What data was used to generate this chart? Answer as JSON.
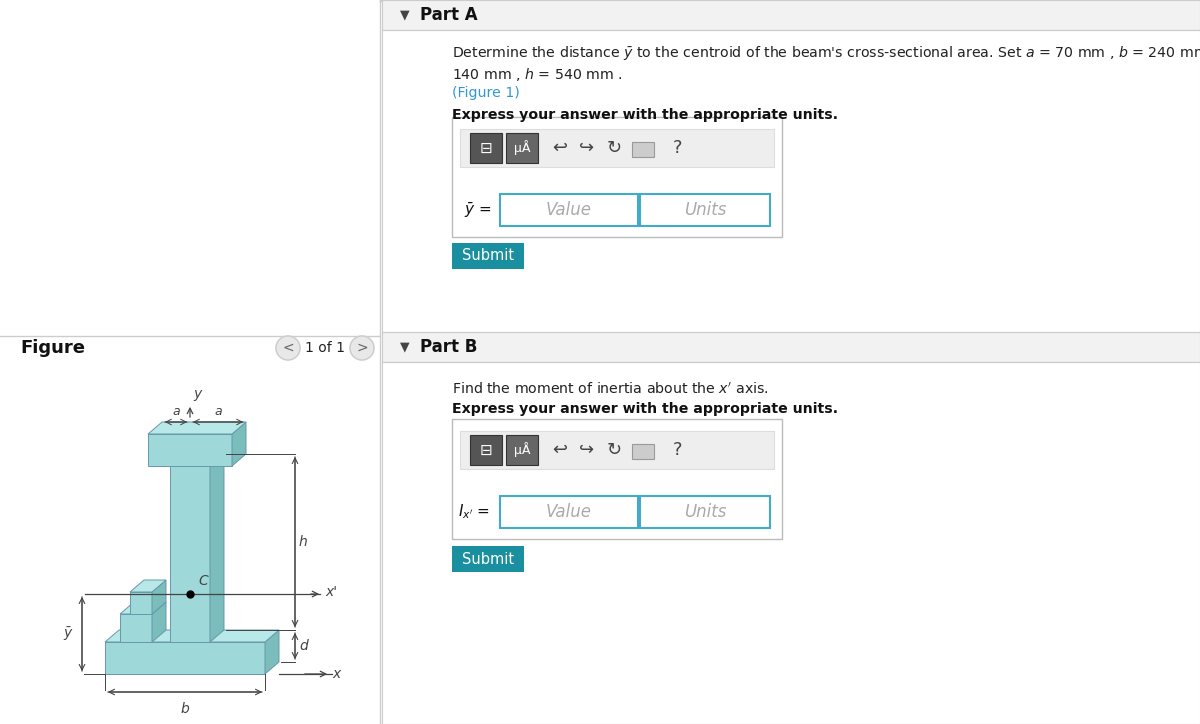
{
  "white": "#ffffff",
  "teal_light": "#9ed8d8",
  "teal_mid": "#7bbcbc",
  "teal_dark": "#5a9a9a",
  "teal_top": "#b8e8e8",
  "teal_shadow": "#4a8888",
  "blue_link": "#3399cc",
  "submit_bg": "#1a8fa0",
  "input_border": "#44aacc",
  "gray_header": "#f0f0f0",
  "gray_border": "#cccccc",
  "dim_color": "#444444",
  "black": "#111111",
  "part_a_header": "Part A",
  "part_b_header": "Part B",
  "figure_label": "Figure",
  "nav_label": "1 of 1",
  "value_placeholder": "Value",
  "units_placeholder": "Units"
}
